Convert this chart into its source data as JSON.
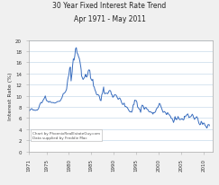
{
  "title_line1": "30 Year Fixed Interest Rate Trend",
  "title_line2": "Apr 1971 - May 2011",
  "ylabel": "Interest Rate (%)",
  "background_color": "#f0f0f0",
  "plot_bg_color": "#ffffff",
  "line_color": "#3a6ebf",
  "grid_color": "#c8daea",
  "annotation_line1": "Chart by PhoenixRealEstateGuy.com",
  "annotation_line2": "Data supplied by Freddie Mac",
  "xlim_start": 1971,
  "xlim_end": 2012,
  "ylim_min": 0,
  "ylim_max": 20,
  "yticks": [
    0,
    2,
    4,
    6,
    8,
    10,
    12,
    14,
    16,
    18,
    20
  ],
  "xticks": [
    1971,
    1975,
    1980,
    1985,
    1990,
    1995,
    2000,
    2005,
    2010
  ],
  "rate_data": [
    [
      1971.25,
      7.33
    ],
    [
      1971.5,
      7.6
    ],
    [
      1971.75,
      7.7
    ],
    [
      1972.0,
      7.44
    ],
    [
      1972.25,
      7.46
    ],
    [
      1972.5,
      7.37
    ],
    [
      1972.75,
      7.44
    ],
    [
      1973.0,
      7.44
    ],
    [
      1973.25,
      7.73
    ],
    [
      1973.5,
      8.38
    ],
    [
      1973.75,
      8.8
    ],
    [
      1974.0,
      8.73
    ],
    [
      1974.25,
      9.19
    ],
    [
      1974.5,
      9.5
    ],
    [
      1974.75,
      9.98
    ],
    [
      1975.0,
      9.15
    ],
    [
      1975.25,
      9.06
    ],
    [
      1975.5,
      8.85
    ],
    [
      1975.75,
      9.0
    ],
    [
      1976.0,
      8.83
    ],
    [
      1976.25,
      8.77
    ],
    [
      1976.5,
      8.8
    ],
    [
      1976.75,
      8.7
    ],
    [
      1977.0,
      8.72
    ],
    [
      1977.25,
      8.85
    ],
    [
      1977.5,
      8.97
    ],
    [
      1977.75,
      8.99
    ],
    [
      1978.0,
      9.02
    ],
    [
      1978.25,
      9.32
    ],
    [
      1978.5,
      9.73
    ],
    [
      1978.75,
      10.38
    ],
    [
      1979.0,
      10.46
    ],
    [
      1979.25,
      10.71
    ],
    [
      1979.5,
      11.2
    ],
    [
      1979.75,
      12.9
    ],
    [
      1980.0,
      13.74
    ],
    [
      1980.17,
      14.88
    ],
    [
      1980.33,
      15.14
    ],
    [
      1980.5,
      12.66
    ],
    [
      1980.67,
      13.74
    ],
    [
      1980.75,
      14.35
    ],
    [
      1980.83,
      15.38
    ],
    [
      1981.0,
      16.63
    ],
    [
      1981.17,
      16.39
    ],
    [
      1981.33,
      17.18
    ],
    [
      1981.5,
      18.45
    ],
    [
      1981.67,
      18.63
    ],
    [
      1981.75,
      18.16
    ],
    [
      1981.83,
      17.67
    ],
    [
      1982.0,
      17.48
    ],
    [
      1982.17,
      17.0
    ],
    [
      1982.33,
      16.7
    ],
    [
      1982.5,
      15.98
    ],
    [
      1982.67,
      15.12
    ],
    [
      1982.75,
      14.6
    ],
    [
      1982.83,
      13.59
    ],
    [
      1983.0,
      13.24
    ],
    [
      1983.17,
      12.92
    ],
    [
      1983.33,
      13.11
    ],
    [
      1983.5,
      13.35
    ],
    [
      1983.67,
      13.64
    ],
    [
      1983.75,
      13.84
    ],
    [
      1983.83,
      13.42
    ],
    [
      1984.0,
      13.37
    ],
    [
      1984.17,
      13.67
    ],
    [
      1984.33,
      14.47
    ],
    [
      1984.5,
      14.67
    ],
    [
      1984.67,
      14.51
    ],
    [
      1984.75,
      13.95
    ],
    [
      1984.83,
      13.2
    ],
    [
      1985.0,
      12.92
    ],
    [
      1985.17,
      12.72
    ],
    [
      1985.33,
      12.96
    ],
    [
      1985.5,
      11.74
    ],
    [
      1985.67,
      11.55
    ],
    [
      1985.75,
      11.25
    ],
    [
      1985.83,
      11.05
    ],
    [
      1986.0,
      10.71
    ],
    [
      1986.17,
      10.25
    ],
    [
      1986.33,
      10.15
    ],
    [
      1986.5,
      10.2
    ],
    [
      1986.67,
      10.09
    ],
    [
      1986.75,
      10.0
    ],
    [
      1986.83,
      9.73
    ],
    [
      1987.0,
      9.2
    ],
    [
      1987.17,
      9.12
    ],
    [
      1987.33,
      10.18
    ],
    [
      1987.5,
      10.47
    ],
    [
      1987.67,
      11.26
    ],
    [
      1987.75,
      11.58
    ],
    [
      1987.83,
      10.76
    ],
    [
      1988.0,
      10.35
    ],
    [
      1988.17,
      10.45
    ],
    [
      1988.33,
      10.46
    ],
    [
      1988.5,
      10.46
    ],
    [
      1988.67,
      10.37
    ],
    [
      1988.75,
      10.5
    ],
    [
      1988.83,
      10.67
    ],
    [
      1989.0,
      10.92
    ],
    [
      1989.17,
      10.96
    ],
    [
      1989.33,
      10.81
    ],
    [
      1989.5,
      10.24
    ],
    [
      1989.67,
      10.13
    ],
    [
      1989.75,
      9.79
    ],
    [
      1989.83,
      9.74
    ],
    [
      1990.0,
      9.9
    ],
    [
      1990.17,
      10.18
    ],
    [
      1990.33,
      10.17
    ],
    [
      1990.5,
      10.13
    ],
    [
      1990.67,
      9.94
    ],
    [
      1990.75,
      9.72
    ],
    [
      1990.83,
      9.64
    ],
    [
      1991.0,
      9.35
    ],
    [
      1991.17,
      9.52
    ],
    [
      1991.33,
      9.61
    ],
    [
      1991.5,
      9.38
    ],
    [
      1991.67,
      9.01
    ],
    [
      1991.75,
      8.79
    ],
    [
      1991.83,
      8.64
    ],
    [
      1992.0,
      8.43
    ],
    [
      1992.17,
      8.51
    ],
    [
      1992.33,
      8.7
    ],
    [
      1992.5,
      8.1
    ],
    [
      1992.67,
      8.08
    ],
    [
      1992.75,
      8.07
    ],
    [
      1992.83,
      7.96
    ],
    [
      1993.0,
      7.92
    ],
    [
      1993.17,
      7.67
    ],
    [
      1993.33,
      7.41
    ],
    [
      1993.5,
      7.2
    ],
    [
      1993.67,
      7.12
    ],
    [
      1993.75,
      7.16
    ],
    [
      1993.83,
      7.17
    ],
    [
      1994.0,
      7.05
    ],
    [
      1994.17,
      7.47
    ],
    [
      1994.33,
      8.36
    ],
    [
      1994.5,
      8.38
    ],
    [
      1994.67,
      9.2
    ],
    [
      1994.75,
      9.17
    ],
    [
      1994.83,
      9.17
    ],
    [
      1995.0,
      9.15
    ],
    [
      1995.17,
      8.83
    ],
    [
      1995.33,
      7.96
    ],
    [
      1995.5,
      7.85
    ],
    [
      1995.67,
      7.61
    ],
    [
      1995.75,
      7.64
    ],
    [
      1995.83,
      7.43
    ],
    [
      1996.0,
      7.03
    ],
    [
      1996.17,
      7.94
    ],
    [
      1996.33,
      8.32
    ],
    [
      1996.5,
      8.25
    ],
    [
      1996.67,
      8.0
    ],
    [
      1996.75,
      7.67
    ],
    [
      1996.83,
      7.6
    ],
    [
      1997.0,
      7.82
    ],
    [
      1997.17,
      7.93
    ],
    [
      1997.33,
      7.67
    ],
    [
      1997.5,
      7.6
    ],
    [
      1997.67,
      7.44
    ],
    [
      1997.75,
      7.29
    ],
    [
      1997.83,
      7.18
    ],
    [
      1998.0,
      7.1
    ],
    [
      1998.17,
      7.14
    ],
    [
      1998.33,
      7.07
    ],
    [
      1998.5,
      6.94
    ],
    [
      1998.67,
      6.88
    ],
    [
      1998.75,
      6.71
    ],
    [
      1998.83,
      6.99
    ],
    [
      1999.0,
      6.95
    ],
    [
      1999.17,
      7.02
    ],
    [
      1999.33,
      7.19
    ],
    [
      1999.5,
      7.63
    ],
    [
      1999.67,
      7.8
    ],
    [
      1999.75,
      7.87
    ],
    [
      1999.83,
      7.91
    ],
    [
      2000.0,
      8.21
    ],
    [
      2000.17,
      8.64
    ],
    [
      2000.33,
      8.52
    ],
    [
      2000.5,
      8.15
    ],
    [
      2000.67,
      7.76
    ],
    [
      2000.75,
      7.61
    ],
    [
      2000.83,
      7.38
    ],
    [
      2001.0,
      7.03
    ],
    [
      2001.17,
      7.1
    ],
    [
      2001.33,
      7.18
    ],
    [
      2001.5,
      7.0
    ],
    [
      2001.67,
      6.81
    ],
    [
      2001.75,
      6.64
    ],
    [
      2001.83,
      6.66
    ],
    [
      2002.0,
      7.0
    ],
    [
      2002.17,
      6.77
    ],
    [
      2002.33,
      6.65
    ],
    [
      2002.5,
      6.47
    ],
    [
      2002.67,
      6.29
    ],
    [
      2002.75,
      6.05
    ],
    [
      2002.83,
      5.96
    ],
    [
      2003.0,
      5.92
    ],
    [
      2003.17,
      5.61
    ],
    [
      2003.33,
      5.21
    ],
    [
      2003.5,
      5.63
    ],
    [
      2003.67,
      6.26
    ],
    [
      2003.75,
      5.88
    ],
    [
      2003.83,
      5.95
    ],
    [
      2004.0,
      5.71
    ],
    [
      2004.17,
      5.84
    ],
    [
      2004.33,
      6.29
    ],
    [
      2004.5,
      5.98
    ],
    [
      2004.67,
      5.72
    ],
    [
      2004.75,
      5.72
    ],
    [
      2004.83,
      5.75
    ],
    [
      2005.0,
      5.77
    ],
    [
      2005.17,
      5.86
    ],
    [
      2005.33,
      5.82
    ],
    [
      2005.5,
      5.66
    ],
    [
      2005.67,
      5.77
    ],
    [
      2005.75,
      6.32
    ],
    [
      2005.83,
      6.27
    ],
    [
      2006.0,
      6.25
    ],
    [
      2006.17,
      6.51
    ],
    [
      2006.33,
      6.6
    ],
    [
      2006.5,
      6.76
    ],
    [
      2006.67,
      6.36
    ],
    [
      2006.75,
      6.11
    ],
    [
      2006.83,
      6.14
    ],
    [
      2007.0,
      6.22
    ],
    [
      2007.17,
      6.26
    ],
    [
      2007.33,
      6.42
    ],
    [
      2007.5,
      6.7
    ],
    [
      2007.67,
      6.47
    ],
    [
      2007.75,
      6.21
    ],
    [
      2007.83,
      6.1
    ],
    [
      2008.0,
      5.76
    ],
    [
      2008.17,
      5.98
    ],
    [
      2008.33,
      6.09
    ],
    [
      2008.5,
      6.26
    ],
    [
      2008.67,
      6.0
    ],
    [
      2008.75,
      5.94
    ],
    [
      2008.83,
      5.53
    ],
    [
      2009.0,
      5.05
    ],
    [
      2009.17,
      4.81
    ],
    [
      2009.33,
      4.86
    ],
    [
      2009.5,
      5.42
    ],
    [
      2009.67,
      5.19
    ],
    [
      2009.75,
      4.95
    ],
    [
      2009.83,
      4.88
    ],
    [
      2010.0,
      5.09
    ],
    [
      2010.17,
      5.1
    ],
    [
      2010.33,
      4.74
    ],
    [
      2010.5,
      4.57
    ],
    [
      2010.67,
      4.35
    ],
    [
      2010.75,
      4.23
    ],
    [
      2010.83,
      4.3
    ],
    [
      2011.0,
      4.81
    ],
    [
      2011.25,
      4.84
    ],
    [
      2011.33,
      4.64
    ]
  ]
}
